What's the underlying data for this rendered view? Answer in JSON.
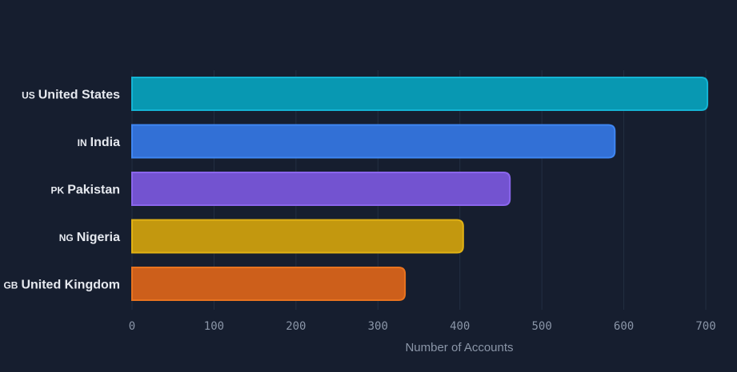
{
  "chart_data": {
    "type": "bar",
    "orientation": "horizontal",
    "categories": [
      "United States",
      "India",
      "Pakistan",
      "Nigeria",
      "United Kingdom"
    ],
    "category_codes": [
      "US",
      "IN",
      "PK",
      "NG",
      "GB"
    ],
    "values": [
      702,
      589,
      461,
      404,
      333
    ],
    "colors": [
      "#0898b2",
      "#3270d6",
      "#7353d0",
      "#c3980f",
      "#cd5f1b"
    ],
    "border_colors": [
      "#14b4d4",
      "#3f86f2",
      "#8a66ec",
      "#e0b114",
      "#e8731f"
    ],
    "title": "",
    "xlabel": "Number of Accounts",
    "ylabel": "",
    "xlim": [
      0,
      700
    ],
    "xticks": [
      0,
      100,
      200,
      300,
      400,
      500,
      600,
      700
    ],
    "grid": true,
    "legend": "none"
  }
}
